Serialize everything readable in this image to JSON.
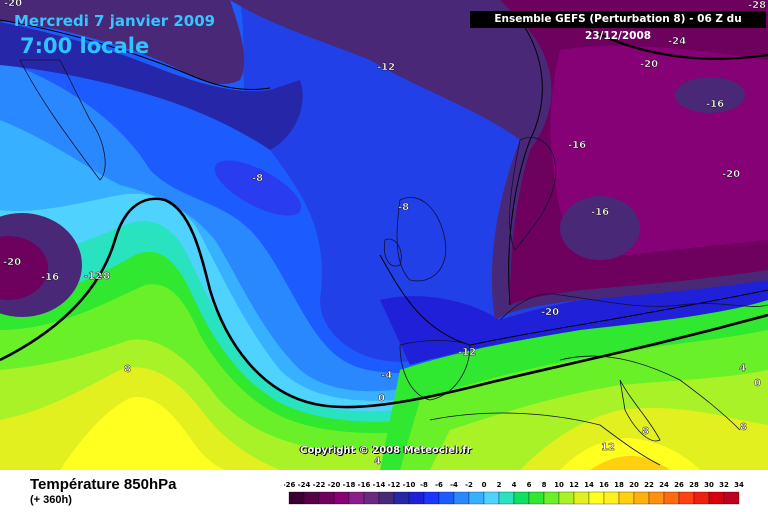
{
  "header": {
    "date": "Mercredi 7 janvier 2009",
    "time": "7:00 locale",
    "run": "Ensemble GEFS (Perturbation 8)  -  06 Z du 23/12/2008"
  },
  "copyright": "Copyright © 2008 Meteociel.fr",
  "footer": {
    "title": "Température 850hPa",
    "subtitle": "(+ 360h)"
  },
  "legend": {
    "ticks": [
      "-26",
      "-24",
      "-22",
      "-20",
      "-18",
      "-16",
      "-14",
      "-12",
      "-10",
      "-8",
      "-6",
      "-4",
      "-2",
      "0",
      "2",
      "4",
      "6",
      "8",
      "10",
      "12",
      "14",
      "16",
      "18",
      "20",
      "22",
      "24",
      "26",
      "28",
      "30",
      "32",
      "34"
    ],
    "colors": [
      "#3a0032",
      "#560048",
      "#6e005e",
      "#860076",
      "#8a1e8a",
      "#6a2a80",
      "#4a2878",
      "#2626a8",
      "#2020d8",
      "#1a36ff",
      "#1c5cff",
      "#2a88ff",
      "#36b0ff",
      "#50d2ff",
      "#28e2c0",
      "#10e060",
      "#30e830",
      "#6af028",
      "#aaf228",
      "#e2f020",
      "#ffff20",
      "#fff020",
      "#ffd010",
      "#ffb010",
      "#ff9010",
      "#ff6a10",
      "#ff4010",
      "#f02010",
      "#d80010",
      "#c00020",
      "#a00030"
    ]
  },
  "map_labels": [
    {
      "text": "-20"
    },
    {
      "text": "-28"
    },
    {
      "text": "-24"
    },
    {
      "text": "-20"
    },
    {
      "text": "-16"
    },
    {
      "text": "-12"
    },
    {
      "text": "-16"
    },
    {
      "text": "-20"
    },
    {
      "text": "-16"
    },
    {
      "text": "-8"
    },
    {
      "text": "-8"
    },
    {
      "text": "-20"
    },
    {
      "text": "-16"
    },
    {
      "text": "-12"
    },
    {
      "text": "-8"
    },
    {
      "text": "-20"
    },
    {
      "text": "-12"
    },
    {
      "text": "-4"
    },
    {
      "text": "0"
    },
    {
      "text": "8"
    },
    {
      "text": "8"
    },
    {
      "text": "4"
    },
    {
      "text": "0"
    },
    {
      "text": "8"
    },
    {
      "text": "12"
    },
    {
      "text": "4"
    }
  ]
}
